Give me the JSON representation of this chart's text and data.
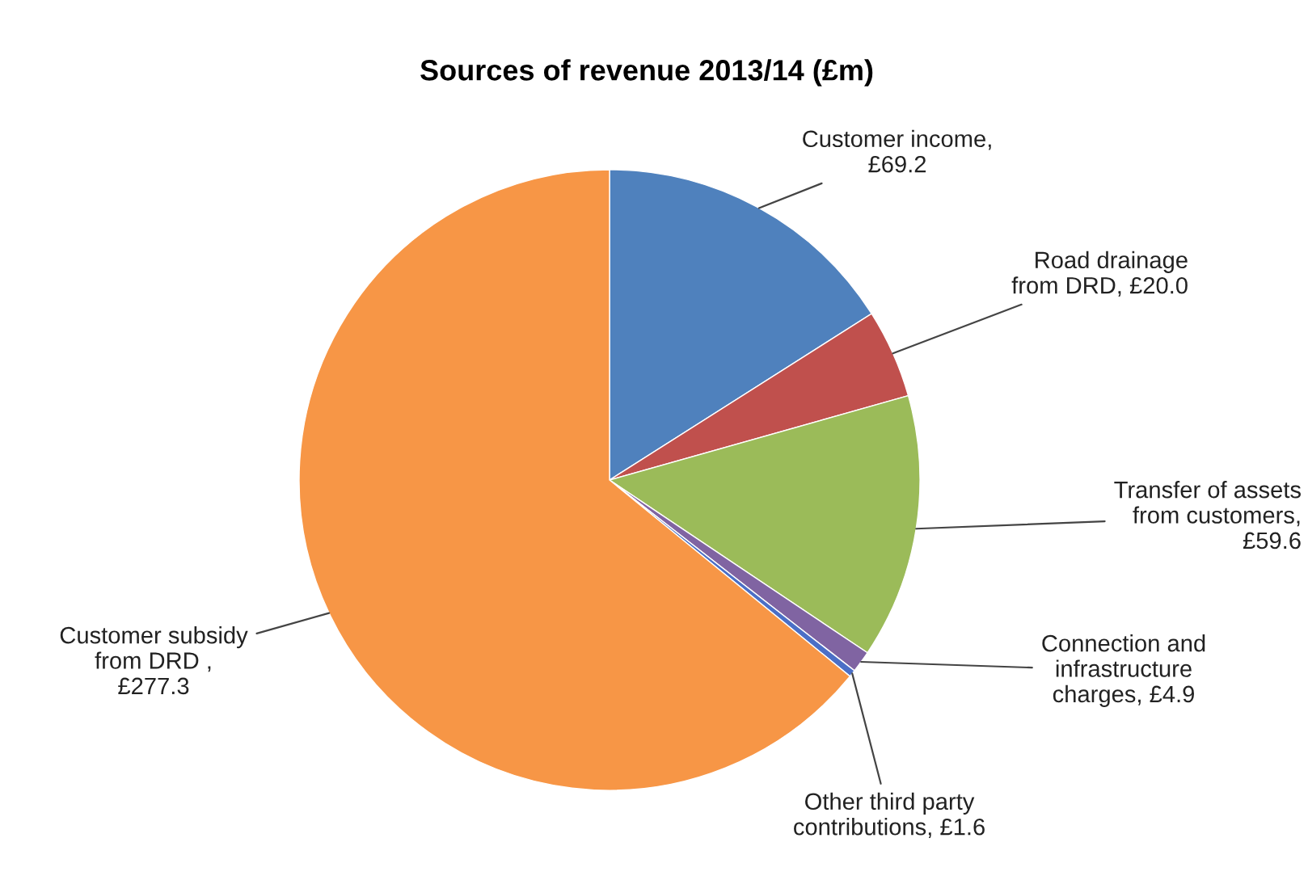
{
  "chart_data": {
    "type": "pie",
    "title": "Sources of revenue 2013/14 (£m)",
    "categories": [
      "Customer income,\n£69.2",
      "Road drainage\nfrom DRD, £20.0",
      "Transfer of assets\nfrom customers,\n£59.6",
      "Connection and\ninfrastructure\ncharges, £4.9",
      "Other third party\ncontributions, £1.6",
      "Customer subsidy\nfrom DRD ,\n£277.3"
    ],
    "values": [
      69.2,
      20.0,
      59.6,
      4.9,
      1.6,
      277.3
    ],
    "colors": [
      "#4f81bd",
      "#c0504d",
      "#9bbb59",
      "#8064a2",
      "#4b6fc6",
      "#f79646"
    ],
    "legend": false
  }
}
